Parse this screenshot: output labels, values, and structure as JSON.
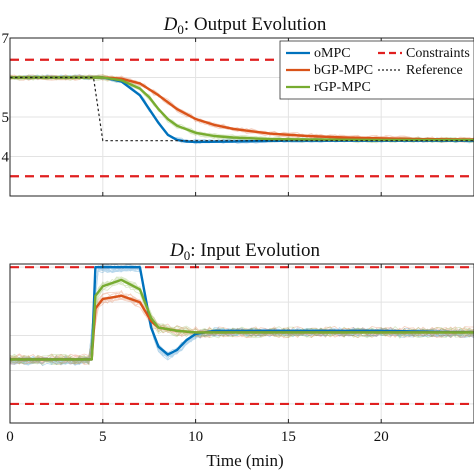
{
  "chart_data": [
    {
      "type": "line",
      "title": "D0: Output Evolution",
      "title_math": "D",
      "title_sub": "0",
      "title_rest": ": Output Evolution",
      "xlabel": "",
      "ylabel": "",
      "xlim": [
        0,
        25
      ],
      "ylim": [
        3,
        7
      ],
      "yticks": [
        7,
        6,
        5,
        4,
        3
      ],
      "ytick_labels": [
        "7",
        "",
        "5",
        "4",
        ""
      ],
      "grid": true,
      "legend_position": "top-right",
      "constraints": [
        6.45,
        3.5
      ],
      "series": [
        {
          "name": "oMPC",
          "color": "#0072BD",
          "x": [
            0,
            3,
            5,
            6,
            7,
            7.5,
            8,
            8.5,
            9,
            9.5,
            10,
            12,
            15,
            20,
            25
          ],
          "y": [
            6.0,
            6.0,
            6.0,
            5.9,
            5.55,
            5.2,
            4.85,
            4.55,
            4.42,
            4.38,
            4.37,
            4.38,
            4.4,
            4.4,
            4.4
          ]
        },
        {
          "name": "bGP-MPC",
          "color": "#D95319",
          "x": [
            0,
            3,
            5,
            6,
            7,
            8,
            9,
            10,
            11,
            12,
            14,
            16,
            18,
            20,
            22,
            25
          ],
          "y": [
            6.0,
            6.0,
            6.0,
            5.97,
            5.85,
            5.55,
            5.2,
            4.95,
            4.8,
            4.7,
            4.58,
            4.52,
            4.48,
            4.46,
            4.44,
            4.43
          ]
        },
        {
          "name": "rGP-MPC",
          "color": "#77AC30",
          "x": [
            0,
            3,
            5,
            6,
            7,
            7.5,
            8,
            8.5,
            9,
            10,
            11,
            12,
            14,
            16,
            20,
            25
          ],
          "y": [
            6.0,
            6.0,
            6.0,
            5.93,
            5.72,
            5.5,
            5.2,
            4.95,
            4.78,
            4.6,
            4.52,
            4.48,
            4.44,
            4.43,
            4.42,
            4.42
          ]
        },
        {
          "name": "Reference",
          "color": "#222222",
          "x": [
            0,
            4.5,
            5,
            10,
            25
          ],
          "y": [
            6.0,
            6.0,
            4.4,
            4.4,
            4.4
          ]
        }
      ],
      "legend": [
        "oMPC",
        "bGP-MPC",
        "rGP-MPC",
        "Constraints",
        "Reference"
      ]
    },
    {
      "type": "line",
      "title": "D0: Input Evolution",
      "title_math": "D",
      "title_sub": "0",
      "title_rest": ": Input Evolution",
      "xlabel": "Time (min)",
      "ylabel": "",
      "xlim": [
        0,
        25
      ],
      "xticks": [
        0,
        5,
        10,
        15,
        20
      ],
      "xtick_labels": [
        "0",
        "5",
        "10",
        "15",
        "20"
      ],
      "ylim": [
        0,
        1
      ],
      "grid": true,
      "constraints": [
        0.98,
        0.12
      ],
      "series": [
        {
          "name": "oMPC",
          "color": "#0072BD",
          "x": [
            0,
            4.4,
            4.6,
            5,
            7,
            7.6,
            8,
            8.5,
            9,
            9.5,
            10,
            11,
            15,
            20,
            25
          ],
          "y": [
            0.4,
            0.4,
            0.98,
            0.98,
            0.98,
            0.6,
            0.48,
            0.43,
            0.46,
            0.52,
            0.56,
            0.58,
            0.58,
            0.58,
            0.57
          ]
        },
        {
          "name": "bGP-MPC",
          "color": "#D95319",
          "x": [
            0,
            4.4,
            4.6,
            5,
            6,
            7,
            7.6,
            8,
            9,
            10,
            12,
            15,
            20,
            25
          ],
          "y": [
            0.4,
            0.4,
            0.72,
            0.78,
            0.8,
            0.76,
            0.64,
            0.6,
            0.58,
            0.57,
            0.57,
            0.57,
            0.57,
            0.57
          ]
        },
        {
          "name": "rGP-MPC",
          "color": "#77AC30",
          "x": [
            0,
            4.4,
            4.6,
            5,
            6,
            7,
            7.6,
            8,
            9,
            10,
            12,
            15,
            20,
            25
          ],
          "y": [
            0.4,
            0.4,
            0.8,
            0.86,
            0.9,
            0.84,
            0.66,
            0.6,
            0.58,
            0.57,
            0.57,
            0.57,
            0.57,
            0.57
          ]
        }
      ]
    }
  ]
}
